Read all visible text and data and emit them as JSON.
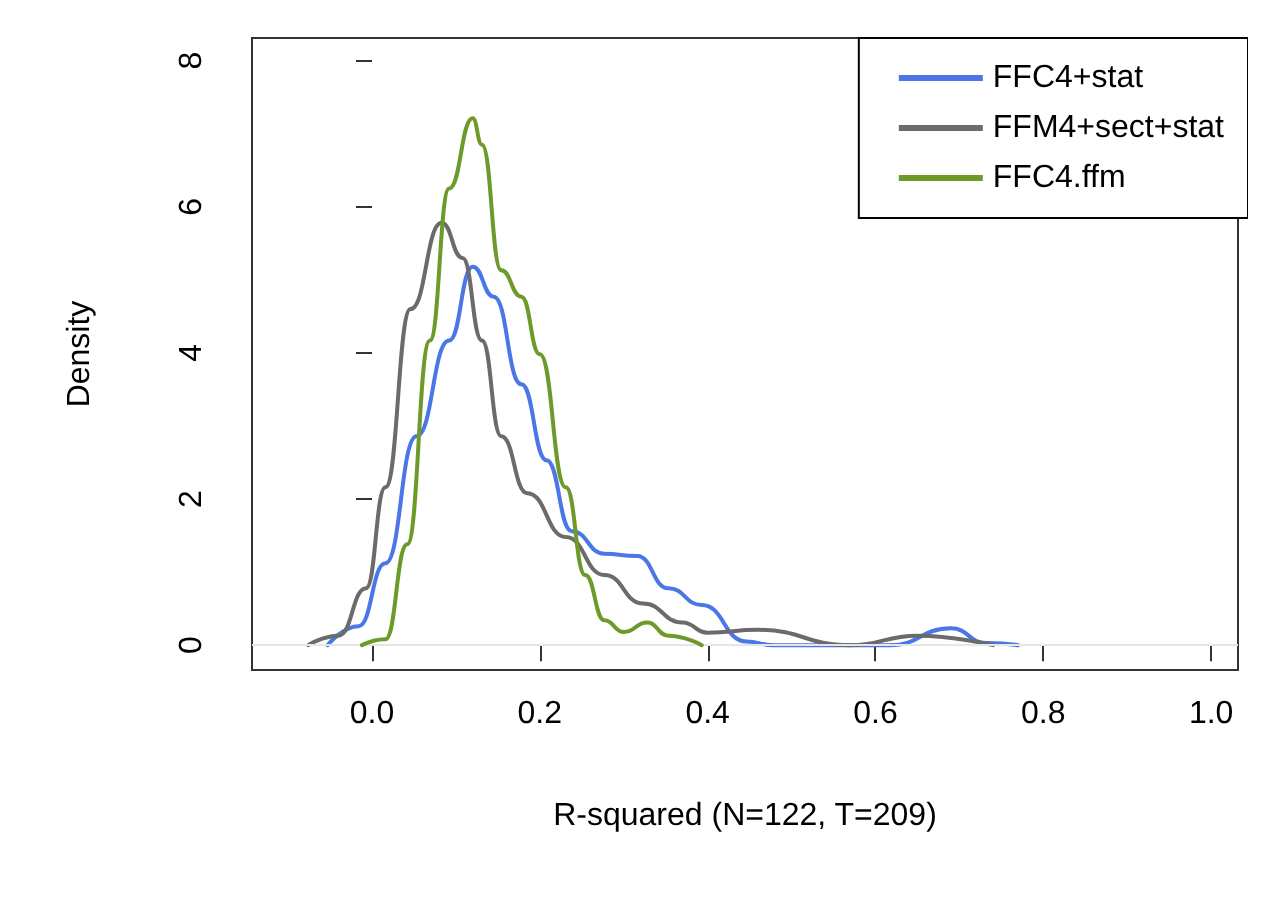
{
  "chart_data": {
    "type": "line",
    "xlabel": "R-squared (N=122, T=209)",
    "ylabel": "Density",
    "xlim": [
      -0.143,
      1.032
    ],
    "ylim": [
      -0.34,
      8.31
    ],
    "xticks": [
      {
        "value": 0,
        "label": "0.0"
      },
      {
        "value": 0.2,
        "label": "0.2"
      },
      {
        "value": 0.4,
        "label": "0.4"
      },
      {
        "value": 0.6,
        "label": "0.6"
      },
      {
        "value": 0.8,
        "label": "0.8"
      },
      {
        "value": 1,
        "label": "1.0"
      }
    ],
    "yticks": [
      0,
      2,
      4,
      6,
      8
    ],
    "grid": false,
    "legend": "top right",
    "marker": "none",
    "line_style": "solid",
    "ref_lines": [
      {
        "axis": "y",
        "value": 0,
        "label": null,
        "color": "#e6e6e6"
      }
    ],
    "series": [
      {
        "name": "FFC4+stat",
        "color": "#4a76e8",
        "x": [
          -0.053,
          -0.016,
          0.016,
          0.053,
          0.092,
          0.12,
          0.145,
          0.178,
          0.208,
          0.238,
          0.277,
          0.316,
          0.353,
          0.393,
          0.446,
          0.478,
          0.617,
          0.69,
          0.732,
          0.77
        ],
        "values": [
          0,
          0.26,
          1.12,
          2.86,
          4.17,
          5.18,
          4.77,
          3.57,
          2.53,
          1.56,
          1.25,
          1.22,
          0.78,
          0.55,
          0.05,
          0,
          0,
          0.23,
          0.03,
          0
        ]
      },
      {
        "name": "FFM4+sect+stat",
        "color": "#6b6b6b",
        "x": [
          -0.076,
          -0.04,
          -0.007,
          0.016,
          0.046,
          0.083,
          0.108,
          0.131,
          0.154,
          0.185,
          0.231,
          0.277,
          0.323,
          0.37,
          0.4,
          0.46,
          0.57,
          0.65,
          0.74
        ],
        "values": [
          0,
          0.13,
          0.78,
          2.16,
          4.6,
          5.78,
          5.3,
          4.17,
          2.86,
          2.08,
          1.48,
          0.96,
          0.57,
          0.31,
          0.17,
          0.21,
          0,
          0.13,
          0
        ]
      },
      {
        "name": "FFC4.ffm",
        "color": "#6e9a2a",
        "x": [
          -0.012,
          0.016,
          0.042,
          0.069,
          0.092,
          0.12,
          0.131,
          0.154,
          0.178,
          0.2,
          0.231,
          0.254,
          0.277,
          0.3,
          0.328,
          0.353,
          0.393
        ],
        "values": [
          0,
          0.08,
          1.38,
          4.17,
          6.25,
          7.21,
          6.85,
          5.13,
          4.77,
          3.98,
          2.16,
          0.96,
          0.34,
          0.18,
          0.31,
          0.13,
          0
        ]
      }
    ]
  }
}
